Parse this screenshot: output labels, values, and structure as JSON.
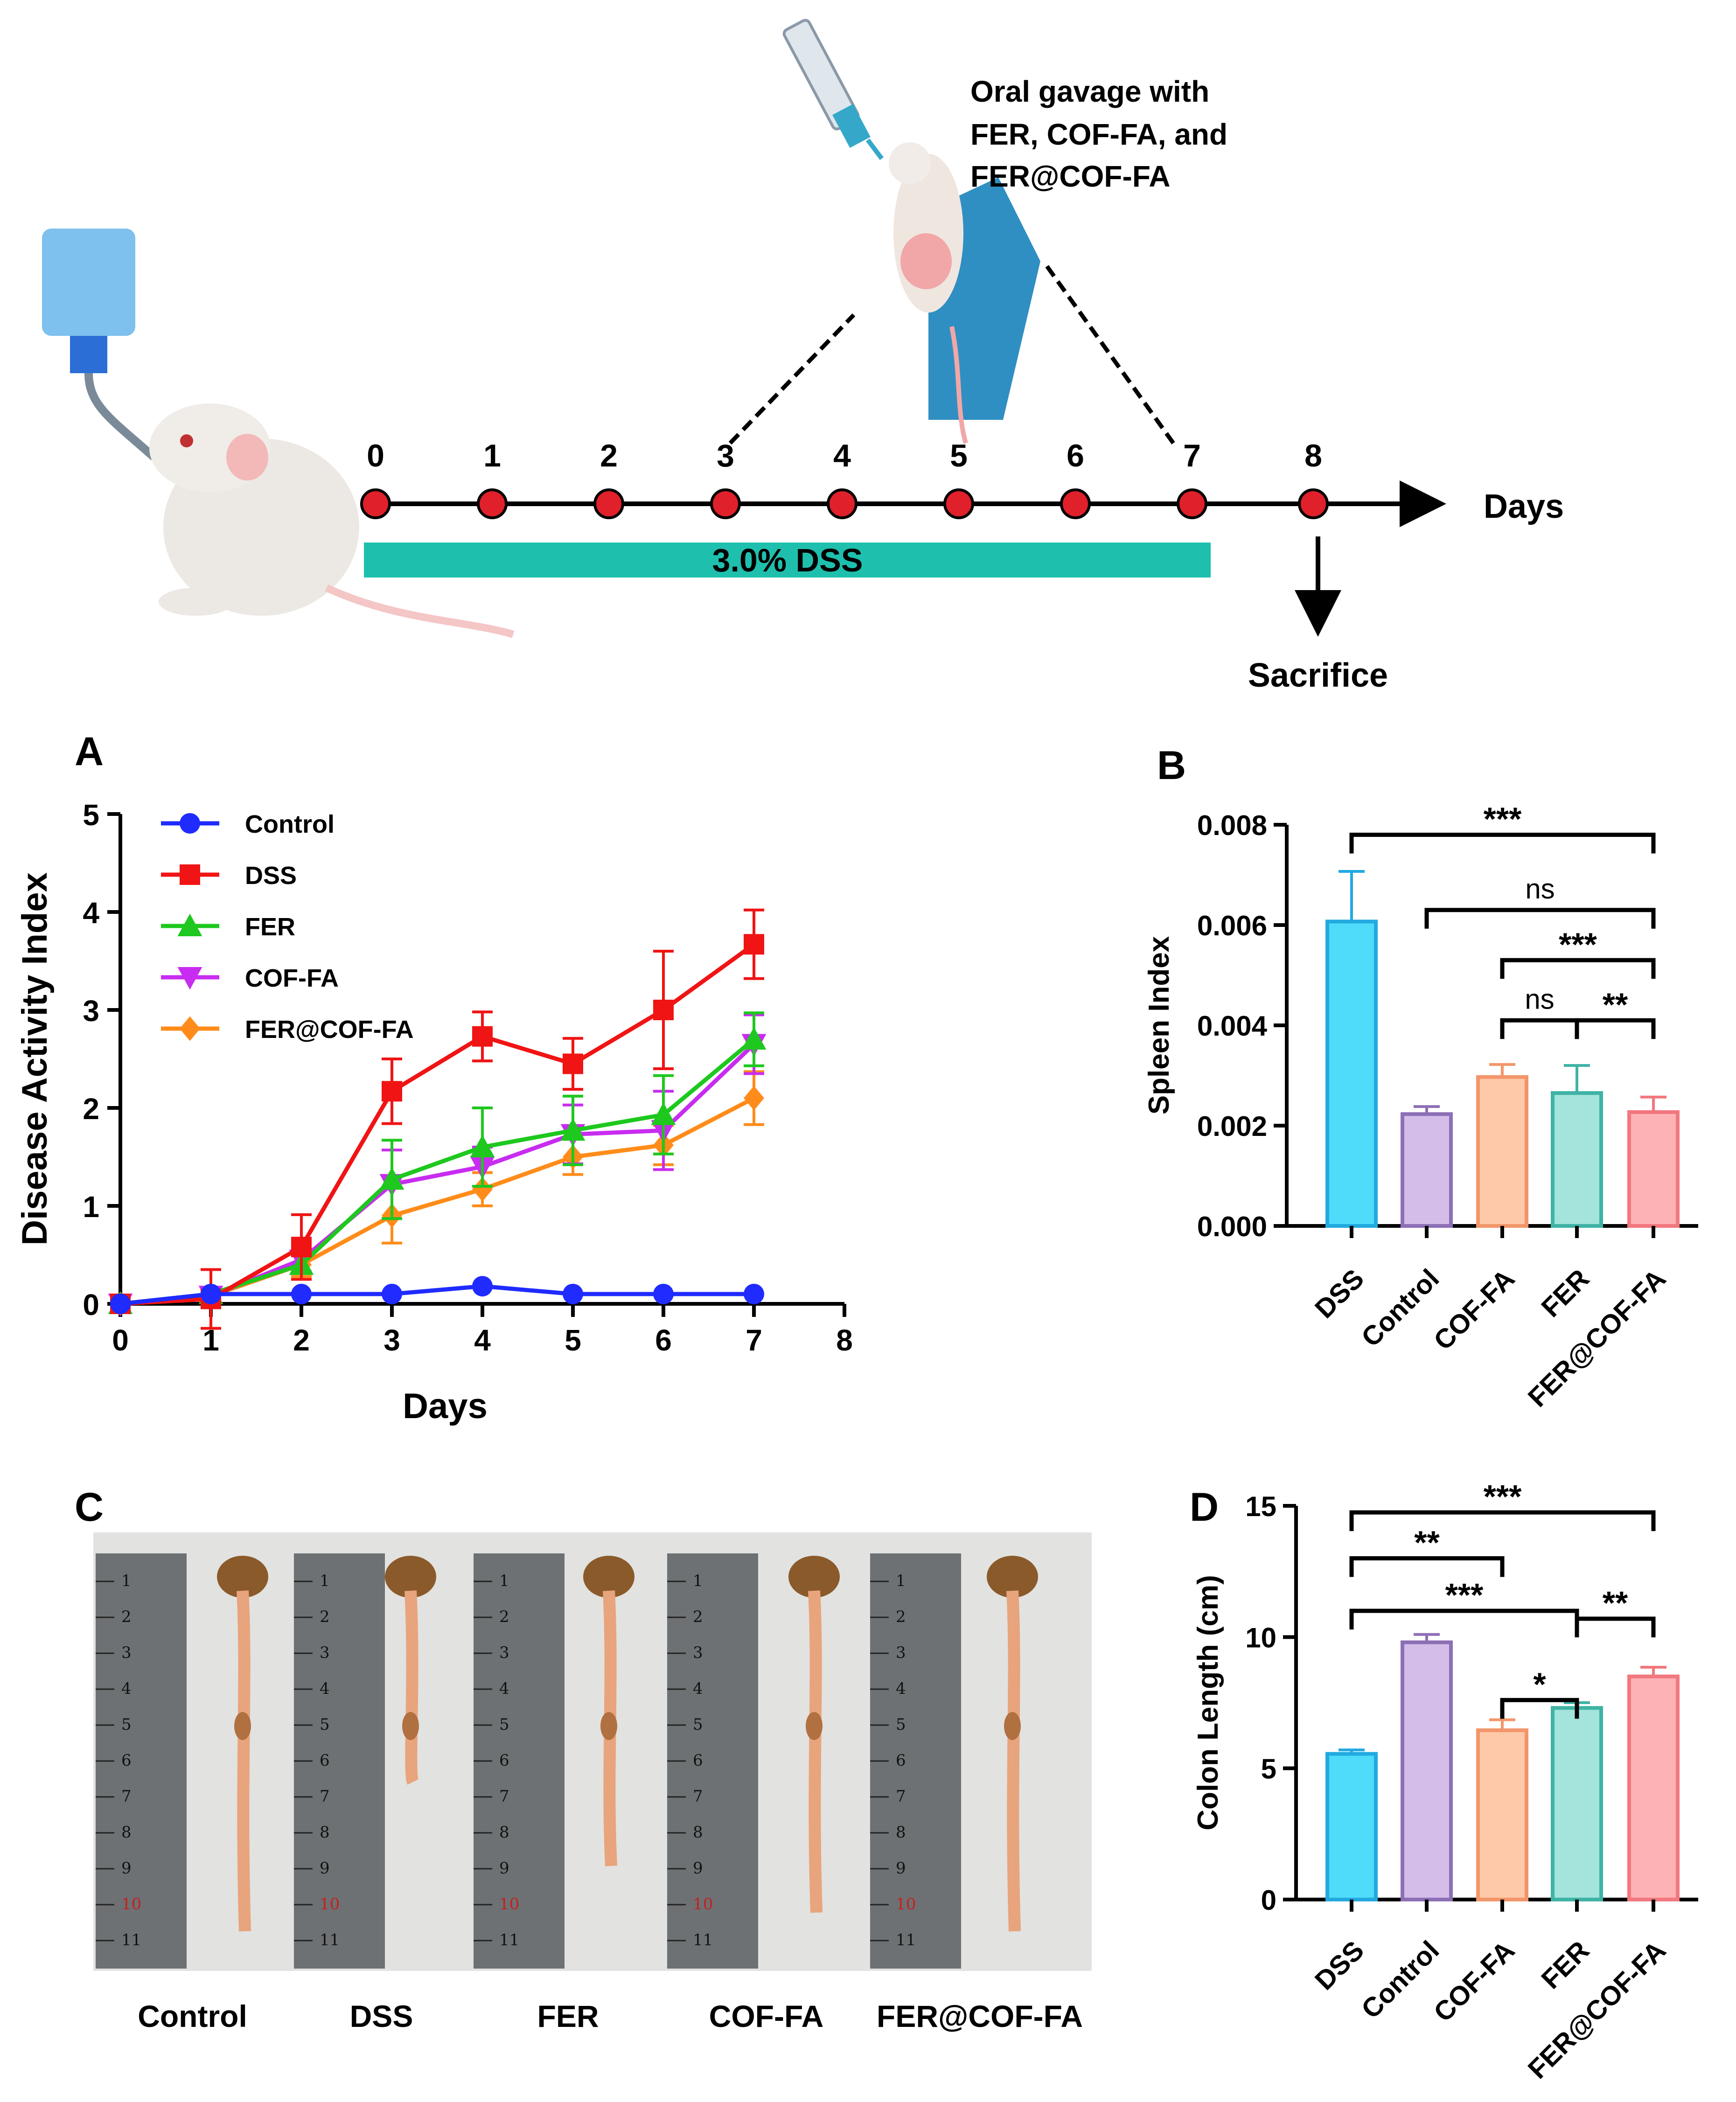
{
  "colors": {
    "control": "#1f2bff",
    "dss": "#f01414",
    "fer": "#1ec81e",
    "coffa": "#c82cf0",
    "fercoffa": "#ff8c1a",
    "bar_dss": "#4fdcfb",
    "bar_dss_edge": "#22a9e0",
    "bar_control": "#d4bde9",
    "bar_control_edge": "#8d6fb5",
    "bar_coffa": "#fdc9a9",
    "bar_coffa_edge": "#f2966a",
    "bar_fer": "#a3e4dc",
    "bar_fer_edge": "#3fb3a5",
    "bar_fercoffa": "#fdb3b6",
    "bar_fercoffa_edge": "#f2777e",
    "dss_band": "#1fbfae",
    "timeline_dot": "#e0202a"
  },
  "schematic": {
    "gavage_label": [
      "Oral gavage with",
      "FER, COF-FA, and",
      "FER@COF-FA"
    ],
    "days": [
      "0",
      "1",
      "2",
      "3",
      "4",
      "5",
      "6",
      "7",
      "8"
    ],
    "days_label": "Days",
    "dss_label": "3.0% DSS",
    "sacrifice_label": "Sacrifice",
    "drinking_bottle_icon": "water-bottle-icon",
    "mouse_icon": "mouse-icon",
    "syringe_icon": "syringe-gavage-icon"
  },
  "chart_data": [
    {
      "panel": "A",
      "type": "line",
      "title": "",
      "xlabel": "Days",
      "ylabel": "Disease Activity Index",
      "x": [
        0,
        1,
        2,
        3,
        4,
        5,
        6,
        7
      ],
      "xlim": [
        0,
        8
      ],
      "ylim": [
        0,
        5
      ],
      "xticks": [
        "0",
        "1",
        "2",
        "3",
        "4",
        "5",
        "6",
        "7",
        "8"
      ],
      "yticks": [
        "0",
        "1",
        "2",
        "3",
        "4",
        "5"
      ],
      "legend_position": "top-left",
      "series": [
        {
          "name": "Control",
          "key": "control",
          "marker": "circle",
          "values": [
            0,
            0.1,
            0.1,
            0.1,
            0.18,
            0.1,
            0.1,
            0.1
          ],
          "err": [
            0,
            0,
            0,
            0,
            0,
            0,
            0,
            0
          ]
        },
        {
          "name": "DSS",
          "key": "dss",
          "marker": "square",
          "values": [
            0,
            0.05,
            0.58,
            2.17,
            2.73,
            2.45,
            3.0,
            3.67
          ],
          "err": [
            0,
            0.3,
            0.33,
            0.33,
            0.25,
            0.26,
            0.6,
            0.35
          ]
        },
        {
          "name": "FER",
          "key": "fer",
          "marker": "triangle-up",
          "values": [
            0,
            0.1,
            0.4,
            1.27,
            1.6,
            1.77,
            1.93,
            2.7
          ],
          "err": [
            0,
            0,
            0.15,
            0.4,
            0.4,
            0.35,
            0.4,
            0.27
          ]
        },
        {
          "name": "COF-FA",
          "key": "coffa",
          "marker": "triangle-down",
          "values": [
            0,
            0.08,
            0.45,
            1.22,
            1.4,
            1.73,
            1.77,
            2.65
          ],
          "err": [
            0,
            0,
            0.12,
            0.35,
            0.2,
            0.3,
            0.4,
            0.3
          ]
        },
        {
          "name": "FER@COF-FA",
          "key": "fercoffa",
          "marker": "diamond",
          "values": [
            0,
            0.08,
            0.4,
            0.9,
            1.17,
            1.5,
            1.62,
            2.1
          ],
          "err": [
            0,
            0,
            0.12,
            0.28,
            0.17,
            0.18,
            0.2,
            0.27
          ]
        }
      ]
    },
    {
      "panel": "B",
      "type": "bar",
      "title": "",
      "xlabel": "",
      "ylabel": "Spleen Index",
      "categories": [
        "DSS",
        "Control",
        "COF-FA",
        "FER",
        "FER@COF-FA"
      ],
      "keys": [
        "bar_dss",
        "bar_control",
        "bar_coffa",
        "bar_fer",
        "bar_fercoffa"
      ],
      "values": [
        0.00607,
        0.00223,
        0.00297,
        0.00265,
        0.00227
      ],
      "err": [
        0.001,
        0.00015,
        0.00025,
        0.00055,
        0.0003
      ],
      "ylim": [
        0,
        0.008
      ],
      "yticks": [
        "0.000",
        "0.002",
        "0.004",
        "0.006",
        "0.008"
      ],
      "significance": [
        {
          "from": 0,
          "to": 4,
          "label": "***",
          "y": 0.0078
        },
        {
          "from": 1,
          "to": 4,
          "label": "ns",
          "y": 0.0063
        },
        {
          "from": 2,
          "to": 4,
          "label": "***",
          "y": 0.0053
        },
        {
          "from": 2,
          "to": 3,
          "label": "ns",
          "y": 0.0041
        },
        {
          "from": 3,
          "to": 4,
          "label": "**",
          "y": 0.0041
        }
      ]
    },
    {
      "panel": "D",
      "type": "bar",
      "title": "",
      "xlabel": "",
      "ylabel": "Colon Length (cm)",
      "categories": [
        "DSS",
        "Control",
        "COF-FA",
        "FER",
        "FER@COF-FA"
      ],
      "keys": [
        "bar_dss",
        "bar_control",
        "bar_coffa",
        "bar_fer",
        "bar_fercoffa"
      ],
      "values": [
        5.55,
        9.8,
        6.45,
        7.3,
        8.5
      ],
      "err": [
        0.15,
        0.3,
        0.4,
        0.2,
        0.35
      ],
      "ylim": [
        0,
        15
      ],
      "yticks": [
        "0",
        "5",
        "10",
        "15"
      ],
      "significance": [
        {
          "from": 0,
          "to": 4,
          "label": "***",
          "y": 14.75
        },
        {
          "from": 0,
          "to": 2,
          "label": "**",
          "y": 13.0
        },
        {
          "from": 0,
          "to": 3,
          "label": "***",
          "y": 11.0
        },
        {
          "from": 3,
          "to": 4,
          "label": "**",
          "y": 10.7
        },
        {
          "from": 2,
          "to": 3,
          "label": "*",
          "y": 7.6
        }
      ]
    }
  ],
  "panel_c": {
    "photo_labels": [
      "Control",
      "DSS",
      "FER",
      "COF-FA",
      "FER@COF-FA"
    ],
    "ruler_numbers": [
      "1",
      "2",
      "3",
      "4",
      "5",
      "6",
      "7",
      "8",
      "9",
      "10",
      "11"
    ]
  },
  "panel_labels": {
    "A": "A",
    "B": "B",
    "C": "C",
    "D": "D"
  }
}
